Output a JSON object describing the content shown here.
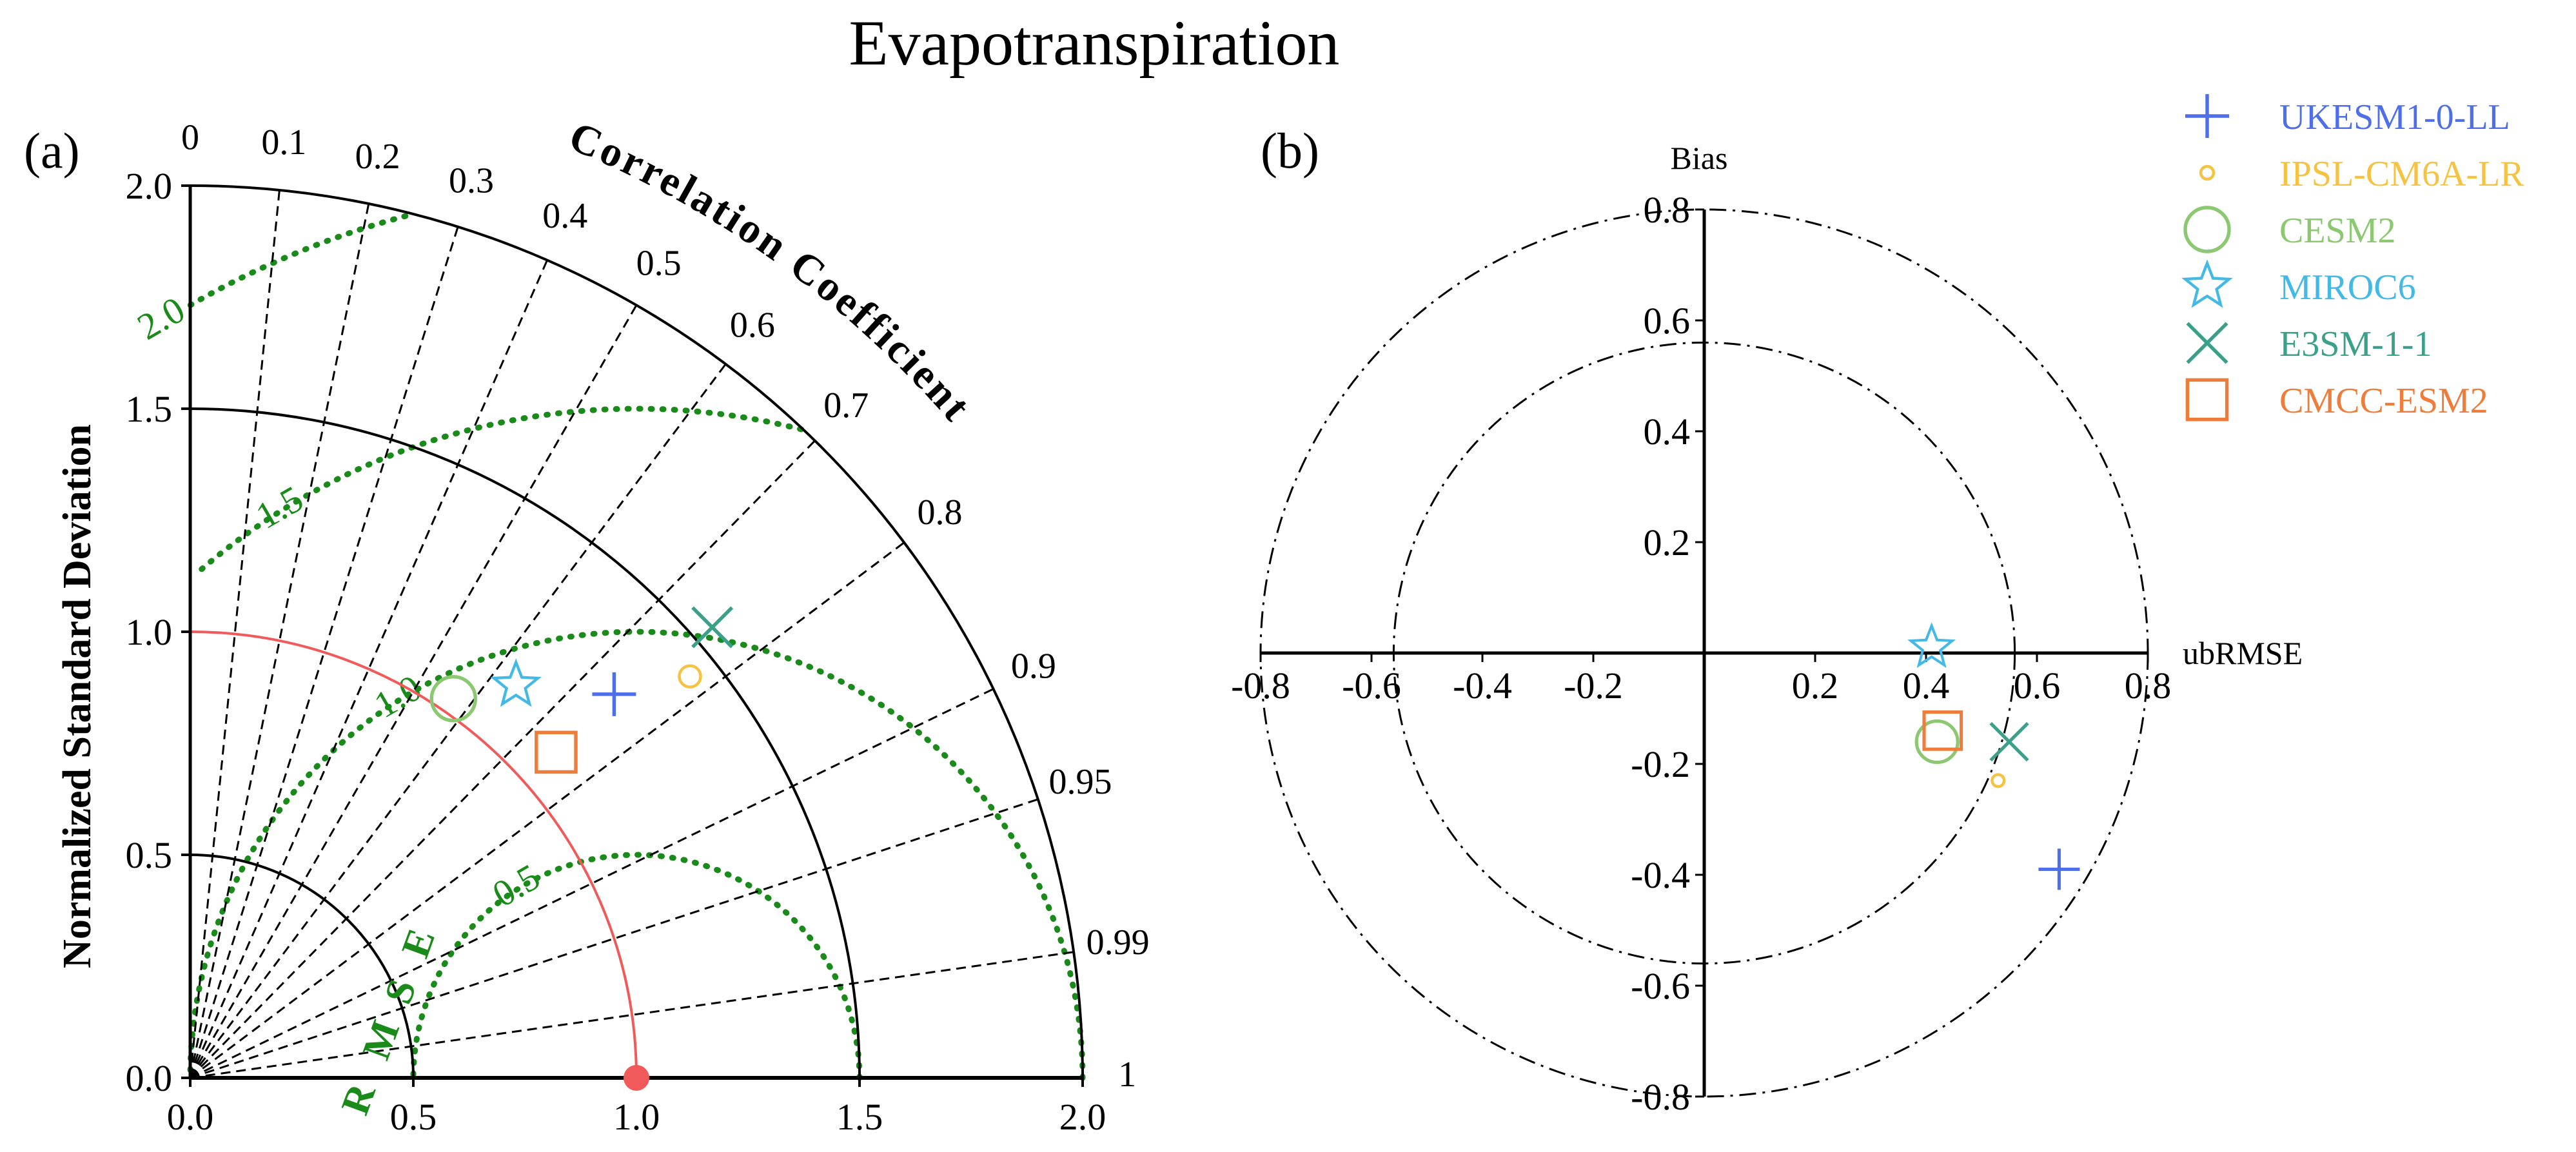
{
  "figure": {
    "title": "Evapotranspiration",
    "panel_a_label": "(a)",
    "panel_b_label": "(b)"
  },
  "colors": {
    "UKESM1-0-LL": "#4f6fe8",
    "IPSL-CM6A-LR": "#f5c242",
    "CESM2": "#8cc872",
    "MIROC6": "#45b9e6",
    "E3SM-1-1": "#3aa08a",
    "CMCC-ESM2": "#ee7d3b",
    "rmse": "#1a8a1a",
    "reference": "#f05a5a"
  },
  "chart_data": [
    {
      "type": "scatter",
      "subtype": "taylor-diagram",
      "panel": "(a)",
      "ylabel": "Normalized Standard Deviation",
      "arc_label": "Correlation Coefficient",
      "rmse_label": "RMSE",
      "std_ticks": [
        "0.0",
        "0.5",
        "1.0",
        "1.5",
        "2.0"
      ],
      "std_ticks_values": [
        0.0,
        0.5,
        1.0,
        1.5,
        2.0
      ],
      "std_arcs": [
        0.5,
        1.5,
        2.0
      ],
      "correlation_ticks": [
        {
          "value": 0,
          "label": "0"
        },
        {
          "value": 0.1,
          "label": "0.1"
        },
        {
          "value": 0.2,
          "label": "0.2"
        },
        {
          "value": 0.3,
          "label": "0.3"
        },
        {
          "value": 0.4,
          "label": "0.4"
        },
        {
          "value": 0.5,
          "label": "0.5"
        },
        {
          "value": 0.6,
          "label": "0.6"
        },
        {
          "value": 0.7,
          "label": "0.7"
        },
        {
          "value": 0.8,
          "label": "0.8"
        },
        {
          "value": 0.9,
          "label": "0.9"
        },
        {
          "value": 0.95,
          "label": "0.95"
        },
        {
          "value": 0.99,
          "label": "0.99"
        },
        {
          "value": 1,
          "label": "1"
        }
      ],
      "rmse_contours": [
        {
          "value": 0.5,
          "label": "0.5"
        },
        {
          "value": 1.0,
          "label": "1.0"
        },
        {
          "value": 1.5,
          "label": "1.5"
        },
        {
          "value": 2.0,
          "label": "2.0"
        }
      ],
      "xlim": [
        0,
        2.0
      ],
      "ylim": [
        0,
        2.0
      ],
      "reference": {
        "std": 1.0,
        "corr": 1.0
      },
      "points": [
        {
          "model": "UKESM1-0-LL",
          "x": 0.95,
          "y": 0.86
        },
        {
          "model": "IPSL-CM6A-LR",
          "x": 1.12,
          "y": 0.9
        },
        {
          "model": "CESM2",
          "x": 0.59,
          "y": 0.85
        },
        {
          "model": "MIROC6",
          "x": 0.73,
          "y": 0.88
        },
        {
          "model": "E3SM-1-1",
          "x": 1.17,
          "y": 1.01
        },
        {
          "model": "CMCC-ESM2",
          "x": 0.82,
          "y": 0.73
        }
      ]
    },
    {
      "type": "scatter",
      "subtype": "bias-ubrmse-diagram",
      "panel": "(b)",
      "xlabel": "ubRMSE",
      "ylabel": "Bias",
      "xlim": [
        -0.8,
        0.8
      ],
      "ylim": [
        -0.8,
        0.8
      ],
      "xticks": [
        {
          "value": -0.8,
          "label": "-0.8"
        },
        {
          "value": -0.6,
          "label": "-0.6"
        },
        {
          "value": -0.4,
          "label": "-0.4"
        },
        {
          "value": -0.2,
          "label": "-0.2"
        },
        {
          "value": 0.2,
          "label": "0.2"
        },
        {
          "value": 0.4,
          "label": "0.4"
        },
        {
          "value": 0.6,
          "label": "0.6"
        },
        {
          "value": 0.8,
          "label": "0.8"
        }
      ],
      "yticks": [
        {
          "value": 0.8,
          "label": "0.8"
        },
        {
          "value": 0.6,
          "label": "0.6"
        },
        {
          "value": 0.4,
          "label": "0.4"
        },
        {
          "value": 0.2,
          "label": "0.2"
        },
        {
          "value": -0.2,
          "label": "-0.2"
        },
        {
          "value": -0.4,
          "label": "-0.4"
        },
        {
          "value": -0.6,
          "label": "-0.6"
        },
        {
          "value": -0.8,
          "label": "-0.8"
        }
      ],
      "circles": [
        0.56,
        0.8
      ],
      "points": [
        {
          "model": "UKESM1-0-LL",
          "x": 0.64,
          "y": -0.39
        },
        {
          "model": "IPSL-CM6A-LR",
          "x": 0.53,
          "y": -0.23
        },
        {
          "model": "CESM2",
          "x": 0.42,
          "y": -0.16
        },
        {
          "model": "MIROC6",
          "x": 0.41,
          "y": 0.01
        },
        {
          "model": "E3SM-1-1",
          "x": 0.55,
          "y": -0.16
        },
        {
          "model": "CMCC-ESM2",
          "x": 0.43,
          "y": -0.14
        }
      ]
    }
  ],
  "legend": {
    "placement": "top-right",
    "items": [
      {
        "label": "UKESM1-0-LL",
        "marker": "plus-icon"
      },
      {
        "label": "IPSL-CM6A-LR",
        "marker": "small-circle-icon"
      },
      {
        "label": "CESM2",
        "marker": "circle-icon"
      },
      {
        "label": "MIROC6",
        "marker": "star-icon"
      },
      {
        "label": "E3SM-1-1",
        "marker": "x-icon"
      },
      {
        "label": "CMCC-ESM2",
        "marker": "square-icon"
      }
    ]
  }
}
